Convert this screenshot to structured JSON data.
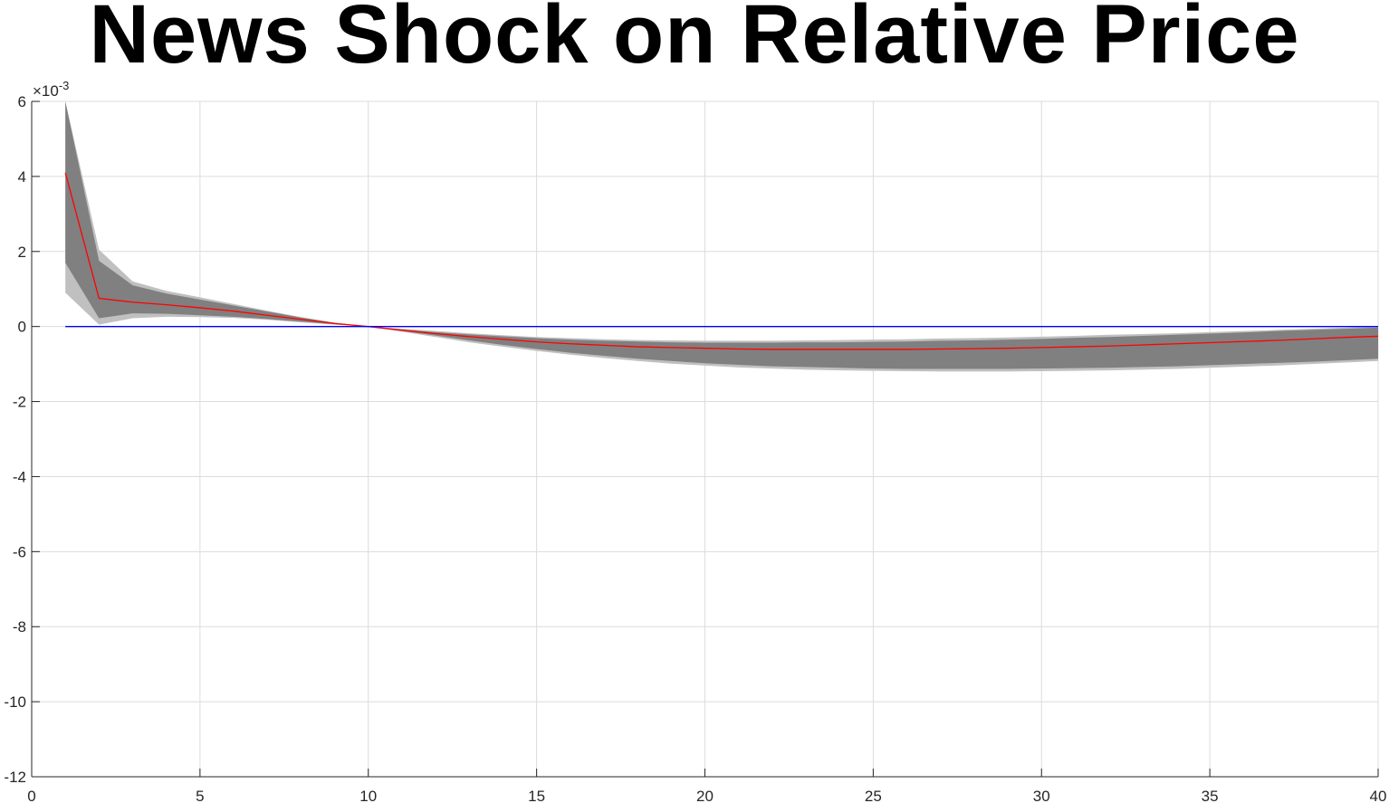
{
  "chart_data": {
    "type": "area",
    "title": "News Shock on Relative Price",
    "xlabel": "",
    "ylabel": "",
    "xlim": [
      0,
      40
    ],
    "ylim": [
      -12,
      6
    ],
    "y_scale_exponent_label": "×10",
    "y_scale_exponent_power": "-3",
    "grid": true,
    "x_ticks": [
      "0",
      "5",
      "10",
      "15",
      "20",
      "25",
      "30",
      "35",
      "40"
    ],
    "y_ticks": [
      "6",
      "4",
      "2",
      "0",
      "-2",
      "-4",
      "-6",
      "-8",
      "-10",
      "-12"
    ],
    "x": [
      1,
      2,
      3,
      4,
      5,
      6,
      7,
      8,
      9,
      10,
      11,
      12,
      13,
      14,
      15,
      16,
      17,
      18,
      19,
      20,
      21,
      22,
      23,
      24,
      25,
      26,
      27,
      28,
      29,
      30,
      31,
      32,
      33,
      34,
      35,
      36,
      37,
      38,
      39,
      40
    ],
    "series": [
      {
        "role": "outer_band",
        "color": "#c0c0c0",
        "upper": [
          6.0,
          2.05,
          1.2,
          0.95,
          0.78,
          0.6,
          0.42,
          0.25,
          0.1,
          0.0,
          -0.06,
          -0.12,
          -0.18,
          -0.23,
          -0.28,
          -0.31,
          -0.34,
          -0.36,
          -0.37,
          -0.38,
          -0.38,
          -0.38,
          -0.37,
          -0.36,
          -0.35,
          -0.34,
          -0.32,
          -0.31,
          -0.29,
          -0.27,
          -0.25,
          -0.22,
          -0.2,
          -0.18,
          -0.15,
          -0.12,
          -0.09,
          -0.06,
          -0.03,
          0.0
        ],
        "lower": [
          0.9,
          0.05,
          0.22,
          0.26,
          0.25,
          0.23,
          0.18,
          0.11,
          0.05,
          0.0,
          -0.14,
          -0.28,
          -0.42,
          -0.54,
          -0.65,
          -0.75,
          -0.84,
          -0.92,
          -0.99,
          -1.04,
          -1.09,
          -1.12,
          -1.15,
          -1.17,
          -1.18,
          -1.19,
          -1.2,
          -1.2,
          -1.2,
          -1.19,
          -1.18,
          -1.17,
          -1.15,
          -1.13,
          -1.1,
          -1.07,
          -1.04,
          -1.0,
          -0.96,
          -0.92
        ]
      },
      {
        "role": "inner_band",
        "color": "#808080",
        "upper": [
          6.0,
          1.75,
          1.1,
          0.88,
          0.72,
          0.56,
          0.4,
          0.24,
          0.1,
          0.0,
          -0.08,
          -0.15,
          -0.21,
          -0.26,
          -0.31,
          -0.35,
          -0.38,
          -0.4,
          -0.42,
          -0.43,
          -0.43,
          -0.43,
          -0.42,
          -0.42,
          -0.41,
          -0.4,
          -0.38,
          -0.37,
          -0.35,
          -0.33,
          -0.3,
          -0.28,
          -0.25,
          -0.22,
          -0.19,
          -0.16,
          -0.12,
          -0.09,
          -0.06,
          -0.03
        ],
        "lower": [
          1.7,
          0.22,
          0.35,
          0.34,
          0.3,
          0.26,
          0.2,
          0.13,
          0.06,
          0.0,
          -0.12,
          -0.24,
          -0.37,
          -0.49,
          -0.6,
          -0.7,
          -0.78,
          -0.86,
          -0.92,
          -0.98,
          -1.02,
          -1.06,
          -1.08,
          -1.1,
          -1.12,
          -1.13,
          -1.13,
          -1.13,
          -1.13,
          -1.12,
          -1.11,
          -1.1,
          -1.08,
          -1.06,
          -1.03,
          -1.0,
          -0.97,
          -0.94,
          -0.9,
          -0.86
        ]
      },
      {
        "role": "median",
        "color": "#ff0000",
        "values": [
          4.1,
          0.75,
          0.65,
          0.58,
          0.5,
          0.41,
          0.3,
          0.19,
          0.08,
          0.0,
          -0.1,
          -0.19,
          -0.27,
          -0.34,
          -0.41,
          -0.46,
          -0.5,
          -0.54,
          -0.56,
          -0.58,
          -0.6,
          -0.61,
          -0.61,
          -0.61,
          -0.61,
          -0.61,
          -0.6,
          -0.59,
          -0.58,
          -0.56,
          -0.54,
          -0.52,
          -0.49,
          -0.46,
          -0.43,
          -0.4,
          -0.37,
          -0.33,
          -0.29,
          -0.26
        ]
      },
      {
        "role": "zero_line",
        "color": "#0000ff",
        "values": [
          0,
          0,
          0,
          0,
          0,
          0,
          0,
          0,
          0,
          0,
          0,
          0,
          0,
          0,
          0,
          0,
          0,
          0,
          0,
          0,
          0,
          0,
          0,
          0,
          0,
          0,
          0,
          0,
          0,
          0,
          0,
          0,
          0,
          0,
          0,
          0,
          0,
          0,
          0,
          0
        ]
      }
    ],
    "colors": {
      "grid": "#dcdcdc",
      "axis": "#262626"
    }
  }
}
